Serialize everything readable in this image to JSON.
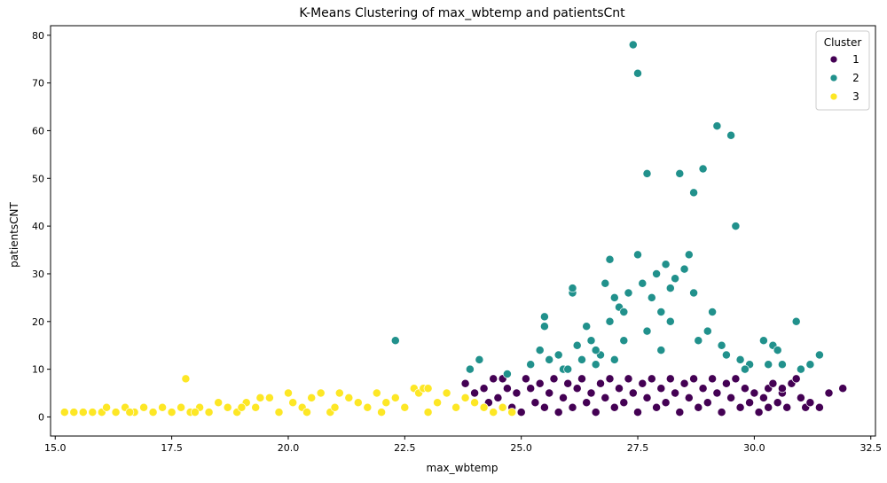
{
  "chart_data": {
    "type": "scatter",
    "title": "K-Means Clustering of max_wbtemp and patientsCnt",
    "xlabel": "max_wbtemp",
    "ylabel": "patientsCNT",
    "xlim": [
      14.9,
      32.6
    ],
    "ylim": [
      -4,
      82
    ],
    "xticks": [
      15.0,
      17.5,
      20.0,
      22.5,
      25.0,
      27.5,
      30.0,
      32.5
    ],
    "xtick_labels": [
      "15.0",
      "17.5",
      "20.0",
      "22.5",
      "25.0",
      "27.5",
      "30.0",
      "32.5"
    ],
    "yticks": [
      0,
      10,
      20,
      30,
      40,
      50,
      60,
      70,
      80
    ],
    "ytick_labels": [
      "0",
      "10",
      "20",
      "30",
      "40",
      "50",
      "60",
      "70",
      "80"
    ],
    "grid": false,
    "legend": {
      "title": "Cluster",
      "placement": "top-right"
    },
    "series": [
      {
        "name": "1",
        "color": "#440154",
        "points": [
          [
            23.8,
            7
          ],
          [
            24.0,
            5
          ],
          [
            24.2,
            6
          ],
          [
            24.3,
            3
          ],
          [
            24.4,
            8
          ],
          [
            24.5,
            4
          ],
          [
            24.6,
            8
          ],
          [
            24.7,
            6
          ],
          [
            24.8,
            2
          ],
          [
            24.9,
            5
          ],
          [
            25.0,
            1
          ],
          [
            25.1,
            8
          ],
          [
            25.2,
            6
          ],
          [
            25.3,
            3
          ],
          [
            25.4,
            7
          ],
          [
            25.5,
            2
          ],
          [
            25.6,
            5
          ],
          [
            25.7,
            8
          ],
          [
            25.8,
            1
          ],
          [
            25.9,
            4
          ],
          [
            26.0,
            7
          ],
          [
            26.1,
            2
          ],
          [
            26.2,
            6
          ],
          [
            26.3,
            8
          ],
          [
            26.4,
            3
          ],
          [
            26.5,
            5
          ],
          [
            26.6,
            1
          ],
          [
            26.7,
            7
          ],
          [
            26.8,
            4
          ],
          [
            26.9,
            8
          ],
          [
            27.0,
            2
          ],
          [
            27.1,
            6
          ],
          [
            27.2,
            3
          ],
          [
            27.3,
            8
          ],
          [
            27.4,
            5
          ],
          [
            27.5,
            1
          ],
          [
            27.6,
            7
          ],
          [
            27.7,
            4
          ],
          [
            27.8,
            8
          ],
          [
            27.9,
            2
          ],
          [
            28.0,
            6
          ],
          [
            28.1,
            3
          ],
          [
            28.2,
            8
          ],
          [
            28.3,
            5
          ],
          [
            28.4,
            1
          ],
          [
            28.5,
            7
          ],
          [
            28.6,
            4
          ],
          [
            28.7,
            8
          ],
          [
            28.8,
            2
          ],
          [
            28.9,
            6
          ],
          [
            29.0,
            3
          ],
          [
            29.1,
            8
          ],
          [
            29.2,
            5
          ],
          [
            29.3,
            1
          ],
          [
            29.4,
            7
          ],
          [
            29.5,
            4
          ],
          [
            29.6,
            8
          ],
          [
            29.7,
            2
          ],
          [
            29.8,
            6
          ],
          [
            29.9,
            3
          ],
          [
            30.0,
            5
          ],
          [
            30.1,
            1
          ],
          [
            30.2,
            4
          ],
          [
            30.3,
            6
          ],
          [
            30.4,
            7
          ],
          [
            30.5,
            3
          ],
          [
            30.6,
            5
          ],
          [
            30.7,
            2
          ],
          [
            30.8,
            7
          ],
          [
            30.9,
            8
          ],
          [
            31.0,
            4
          ],
          [
            31.1,
            2
          ],
          [
            31.2,
            3
          ],
          [
            31.4,
            2
          ],
          [
            31.6,
            5
          ],
          [
            31.9,
            6
          ],
          [
            30.3,
            2
          ],
          [
            30.6,
            6
          ]
        ]
      },
      {
        "name": "2",
        "color": "#21918c",
        "points": [
          [
            22.3,
            16
          ],
          [
            23.9,
            10
          ],
          [
            24.1,
            12
          ],
          [
            24.7,
            9
          ],
          [
            25.2,
            11
          ],
          [
            25.4,
            14
          ],
          [
            25.5,
            19
          ],
          [
            25.5,
            21
          ],
          [
            25.6,
            12
          ],
          [
            25.8,
            13
          ],
          [
            25.9,
            10
          ],
          [
            26.1,
            26
          ],
          [
            26.1,
            27
          ],
          [
            26.2,
            15
          ],
          [
            26.3,
            12
          ],
          [
            26.4,
            19
          ],
          [
            26.5,
            16
          ],
          [
            26.6,
            11
          ],
          [
            26.7,
            13
          ],
          [
            26.8,
            28
          ],
          [
            26.9,
            20
          ],
          [
            26.9,
            33
          ],
          [
            27.0,
            25
          ],
          [
            27.1,
            23
          ],
          [
            27.2,
            22
          ],
          [
            27.3,
            26
          ],
          [
            27.4,
            78
          ],
          [
            27.5,
            72
          ],
          [
            27.5,
            34
          ],
          [
            27.6,
            28
          ],
          [
            27.7,
            51
          ],
          [
            27.8,
            25
          ],
          [
            27.9,
            30
          ],
          [
            28.0,
            22
          ],
          [
            28.1,
            32
          ],
          [
            28.2,
            27
          ],
          [
            28.3,
            29
          ],
          [
            28.4,
            51
          ],
          [
            28.5,
            31
          ],
          [
            28.6,
            34
          ],
          [
            28.7,
            47
          ],
          [
            28.7,
            26
          ],
          [
            28.9,
            52
          ],
          [
            29.0,
            18
          ],
          [
            29.1,
            22
          ],
          [
            29.2,
            61
          ],
          [
            29.3,
            15
          ],
          [
            29.5,
            59
          ],
          [
            29.6,
            40
          ],
          [
            29.7,
            12
          ],
          [
            29.9,
            11
          ],
          [
            30.2,
            16
          ],
          [
            30.4,
            15
          ],
          [
            30.6,
            11
          ],
          [
            30.9,
            20
          ],
          [
            31.0,
            10
          ],
          [
            31.2,
            11
          ],
          [
            31.4,
            13
          ],
          [
            26.0,
            10
          ],
          [
            26.6,
            14
          ],
          [
            27.2,
            16
          ],
          [
            27.7,
            18
          ],
          [
            28.2,
            20
          ],
          [
            28.8,
            16
          ],
          [
            29.4,
            13
          ],
          [
            29.8,
            10
          ],
          [
            30.3,
            11
          ],
          [
            30.5,
            14
          ],
          [
            27.0,
            12
          ],
          [
            28.0,
            14
          ]
        ]
      },
      {
        "name": "3",
        "color": "#fde725",
        "points": [
          [
            15.2,
            1
          ],
          [
            15.4,
            1
          ],
          [
            15.6,
            1
          ],
          [
            15.8,
            1
          ],
          [
            16.0,
            1
          ],
          [
            16.1,
            2
          ],
          [
            16.3,
            1
          ],
          [
            16.5,
            2
          ],
          [
            16.7,
            1
          ],
          [
            16.9,
            2
          ],
          [
            17.1,
            1
          ],
          [
            17.3,
            2
          ],
          [
            17.5,
            1
          ],
          [
            17.7,
            2
          ],
          [
            17.8,
            8
          ],
          [
            17.9,
            1
          ],
          [
            18.1,
            2
          ],
          [
            18.3,
            1
          ],
          [
            18.5,
            3
          ],
          [
            18.7,
            2
          ],
          [
            18.9,
            1
          ],
          [
            19.1,
            3
          ],
          [
            19.3,
            2
          ],
          [
            19.4,
            4
          ],
          [
            19.6,
            4
          ],
          [
            19.8,
            1
          ],
          [
            20.0,
            5
          ],
          [
            20.1,
            3
          ],
          [
            20.3,
            2
          ],
          [
            20.5,
            4
          ],
          [
            20.7,
            5
          ],
          [
            20.9,
            1
          ],
          [
            21.1,
            5
          ],
          [
            21.3,
            4
          ],
          [
            21.5,
            3
          ],
          [
            21.7,
            2
          ],
          [
            21.9,
            5
          ],
          [
            22.1,
            3
          ],
          [
            22.3,
            4
          ],
          [
            22.5,
            2
          ],
          [
            22.7,
            6
          ],
          [
            22.8,
            5
          ],
          [
            22.9,
            6
          ],
          [
            23.0,
            6
          ],
          [
            23.2,
            3
          ],
          [
            23.4,
            5
          ],
          [
            23.6,
            2
          ],
          [
            23.8,
            4
          ],
          [
            24.0,
            3
          ],
          [
            24.2,
            2
          ],
          [
            24.4,
            1
          ],
          [
            24.6,
            2
          ],
          [
            24.8,
            1
          ],
          [
            19.0,
            2
          ],
          [
            21.0,
            2
          ],
          [
            22.0,
            1
          ],
          [
            23.0,
            1
          ],
          [
            20.4,
            1
          ],
          [
            18.0,
            1
          ],
          [
            16.6,
            1
          ]
        ]
      }
    ]
  }
}
